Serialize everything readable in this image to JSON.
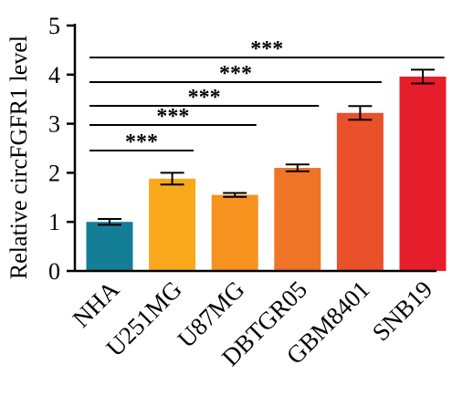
{
  "chart_data": {
    "type": "bar",
    "title": "",
    "xlabel": "",
    "ylabel": "Relative circFGFR1 level",
    "ylim": [
      0,
      5
    ],
    "yticks": [
      0,
      1,
      2,
      3,
      4,
      5
    ],
    "categories": [
      "NHA",
      "U251MG",
      "U87MG",
      "DBTGR05",
      "GBM8401",
      "SNB19"
    ],
    "values": [
      1.0,
      1.88,
      1.55,
      2.1,
      3.22,
      3.96
    ],
    "errors": [
      0.06,
      0.12,
      0.04,
      0.07,
      0.14,
      0.14
    ],
    "colors": [
      "#137e96",
      "#f9a81c",
      "#f6921e",
      "#ef7426",
      "#e8512a",
      "#e61e2c"
    ],
    "significance": [
      {
        "from": "NHA",
        "to": "U251MG",
        "label": "***"
      },
      {
        "from": "NHA",
        "to": "U87MG",
        "label": "***"
      },
      {
        "from": "NHA",
        "to": "DBTGR05",
        "label": "***"
      },
      {
        "from": "NHA",
        "to": "GBM8401",
        "label": "***"
      },
      {
        "from": "NHA",
        "to": "SNB19",
        "label": "***"
      }
    ],
    "grid": false,
    "legend": "none"
  }
}
